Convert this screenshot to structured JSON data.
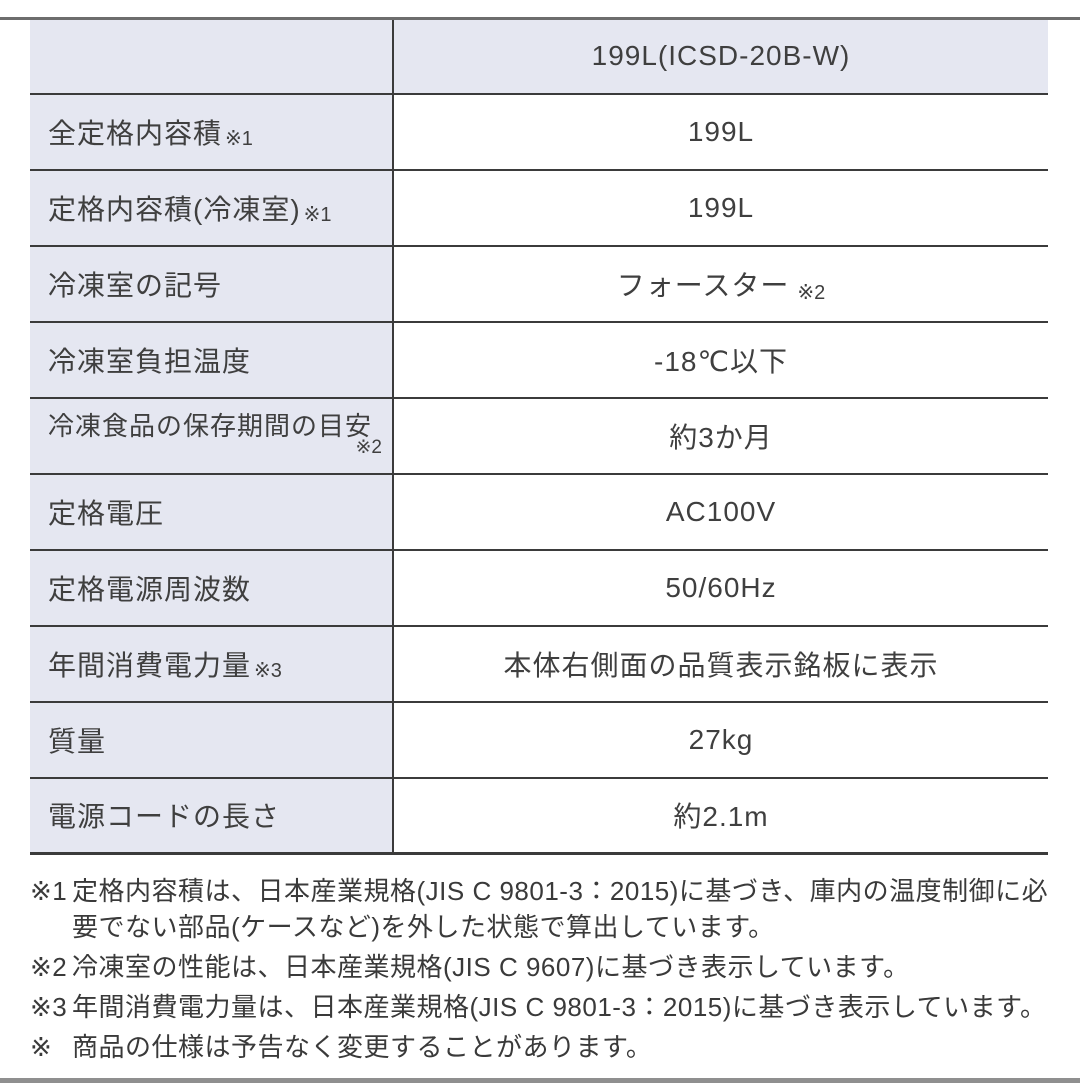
{
  "colors": {
    "header_and_label_bg": "#e5e7f1",
    "border": "#3b3b3b",
    "text": "#3f3f3f",
    "top_edge_bar": "#6d6d6d",
    "bottom_edge_bar": "#8f8f8f"
  },
  "table": {
    "header": {
      "corner_label": "",
      "model_label": "199L(ICSD-20B-W)"
    },
    "rows": [
      {
        "label": "全定格内容積",
        "note": "※1",
        "value": "199L",
        "value_note": ""
      },
      {
        "label": "定格内容積(冷凍室)",
        "note": "※1",
        "value": "199L",
        "value_note": ""
      },
      {
        "label": "冷凍室の記号",
        "note": "",
        "value": "フォースター",
        "value_note": "※2"
      },
      {
        "label": "冷凍室負担温度",
        "note": "",
        "value": "-18℃以下",
        "value_note": ""
      },
      {
        "label": "冷凍食品の保存期間の目安",
        "note_below": "※2",
        "value": "約3か月",
        "value_note": ""
      },
      {
        "label": "定格電圧",
        "note": "",
        "value": "AC100V",
        "value_note": ""
      },
      {
        "label": "定格電源周波数",
        "note": "",
        "value": "50/60Hz",
        "value_note": ""
      },
      {
        "label": "年間消費電力量",
        "note": "※3",
        "value": "本体右側面の品質表示銘板に表示",
        "value_note": ""
      },
      {
        "label": "質量",
        "note": "",
        "value": "27kg",
        "value_note": ""
      },
      {
        "label": "電源コードの長さ",
        "note": "",
        "value": "約2.1m",
        "value_note": ""
      }
    ]
  },
  "footnotes": [
    {
      "marker": "※1",
      "text": "定格内容積は、日本産業規格(JIS C 9801-3：2015)に基づき、庫内の温度制御に必要でない部品(ケースなど)を外した状態で算出しています。"
    },
    {
      "marker": "※2",
      "text": "冷凍室の性能は、日本産業規格(JIS C 9607)に基づき表示しています。"
    },
    {
      "marker": "※3",
      "text": "年間消費電力量は、日本産業規格(JIS C 9801-3：2015)に基づき表示しています。"
    },
    {
      "marker": "※",
      "text": "商品の仕様は予告なく変更することがあります。"
    }
  ]
}
